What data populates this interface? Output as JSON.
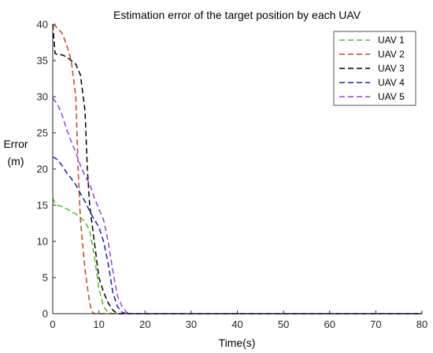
{
  "chart_data": {
    "type": "line",
    "title": "Estimation error of the target position by each UAV",
    "xlabel": "Time(s)",
    "ylabel_line1": "Error",
    "ylabel_line2": "(m)",
    "xlim": [
      0,
      80
    ],
    "ylim": [
      0,
      40
    ],
    "x_ticks": [
      0,
      10,
      20,
      30,
      40,
      50,
      60,
      70,
      80
    ],
    "y_ticks": [
      0,
      5,
      10,
      15,
      20,
      25,
      30,
      35,
      40
    ],
    "grid": false,
    "legend_position": "top-right",
    "line_style": "dashed",
    "series": [
      {
        "name": "UAV 1",
        "color": "#4cbf1a",
        "points": [
          [
            0,
            16
          ],
          [
            0.5,
            15.2
          ],
          [
            1,
            15
          ],
          [
            2,
            14.8
          ],
          [
            3,
            14.5
          ],
          [
            4,
            14.1
          ],
          [
            5,
            13.8
          ],
          [
            6,
            13.3
          ],
          [
            7,
            12.7
          ],
          [
            8,
            11.5
          ],
          [
            9,
            8
          ],
          [
            10,
            3.5
          ],
          [
            11,
            1
          ],
          [
            12,
            0.2
          ],
          [
            13,
            0
          ],
          [
            80,
            0
          ]
        ]
      },
      {
        "name": "UAV 2",
        "color": "#c0451a",
        "points": [
          [
            0,
            40
          ],
          [
            0.5,
            39.8
          ],
          [
            1,
            39.5
          ],
          [
            2,
            38.8
          ],
          [
            3,
            37.2
          ],
          [
            4,
            35
          ],
          [
            5,
            30
          ],
          [
            5.5,
            20
          ],
          [
            6,
            13
          ],
          [
            7,
            6
          ],
          [
            8,
            1.5
          ],
          [
            8.5,
            0.3
          ],
          [
            9,
            0
          ],
          [
            80,
            0
          ]
        ]
      },
      {
        "name": "UAV 3",
        "color": "#000000",
        "points": [
          [
            0,
            40
          ],
          [
            0.5,
            36
          ],
          [
            1,
            35.8
          ],
          [
            2,
            35.8
          ],
          [
            3,
            35.5
          ],
          [
            4,
            35
          ],
          [
            5,
            34.5
          ],
          [
            6,
            33
          ],
          [
            7,
            28
          ],
          [
            7.5,
            20
          ],
          [
            8,
            15
          ],
          [
            9,
            10
          ],
          [
            10,
            5
          ],
          [
            11,
            3
          ],
          [
            12,
            1.5
          ],
          [
            13,
            0.5
          ],
          [
            14,
            0
          ],
          [
            80,
            0
          ]
        ]
      },
      {
        "name": "UAV 4",
        "color": "#1a1acc",
        "points": [
          [
            0,
            21.7
          ],
          [
            1,
            21.3
          ],
          [
            2,
            20.5
          ],
          [
            3,
            19.5
          ],
          [
            4,
            18.7
          ],
          [
            5,
            17.8
          ],
          [
            6,
            16.6
          ],
          [
            7,
            15.5
          ],
          [
            8,
            14.2
          ],
          [
            9,
            13
          ],
          [
            10,
            12
          ],
          [
            11,
            10
          ],
          [
            12,
            7
          ],
          [
            13,
            3
          ],
          [
            14,
            1
          ],
          [
            15,
            0.2
          ],
          [
            16,
            0
          ],
          [
            80,
            0
          ]
        ]
      },
      {
        "name": "UAV 5",
        "color": "#9a3fe0",
        "points": [
          [
            0,
            29.8
          ],
          [
            1,
            29
          ],
          [
            2,
            27.5
          ],
          [
            3,
            25.5
          ],
          [
            4,
            23.8
          ],
          [
            5,
            22.3
          ],
          [
            6,
            20.5
          ],
          [
            7,
            19
          ],
          [
            8,
            18
          ],
          [
            9,
            16
          ],
          [
            10,
            14.5
          ],
          [
            11,
            13
          ],
          [
            12,
            10
          ],
          [
            13,
            6
          ],
          [
            14,
            2.5
          ],
          [
            15,
            1
          ],
          [
            16,
            0.2
          ],
          [
            17,
            0
          ],
          [
            80,
            0
          ]
        ]
      }
    ]
  }
}
